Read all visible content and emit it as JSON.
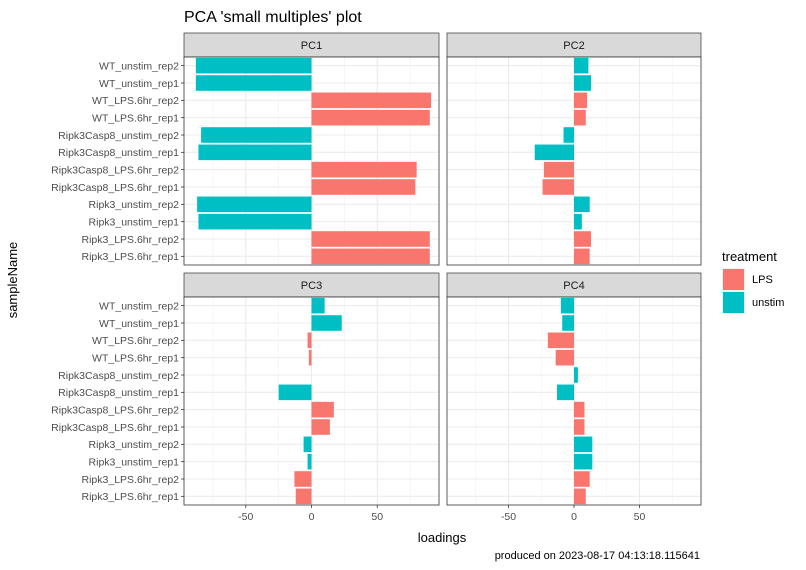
{
  "chart_data": {
    "type": "bar",
    "orientation": "horizontal",
    "facet_layout": "2x2",
    "title": "PCA 'small multiples' plot",
    "xlabel": "loadings",
    "ylabel": "sampleName",
    "caption": "produced on 2023-08-17 04:13:18.115641",
    "xlim": [
      -97,
      97
    ],
    "x_ticks": [
      -50,
      0,
      50
    ],
    "x_tick_labels": [
      "-50",
      "0",
      "50"
    ],
    "grid": true,
    "legend_position": "right",
    "legend": {
      "title": "treatment",
      "entries": [
        {
          "name": "LPS",
          "color": "#F8766D"
        },
        {
          "name": "unstim",
          "color": "#00BFC4"
        }
      ]
    },
    "categories": [
      "WT_unstim_rep2",
      "WT_unstim_rep1",
      "WT_LPS.6hr_rep2",
      "WT_LPS.6hr_rep1",
      "Ripk3Casp8_unstim_rep2",
      "Ripk3Casp8_unstim_rep1",
      "Ripk3Casp8_LPS.6hr_rep2",
      "Ripk3Casp8_LPS.6hr_rep1",
      "Ripk3_unstim_rep2",
      "Ripk3_unstim_rep1",
      "Ripk3_LPS.6hr_rep2",
      "Ripk3_LPS.6hr_rep1"
    ],
    "treatment": [
      "unstim",
      "unstim",
      "LPS",
      "LPS",
      "unstim",
      "unstim",
      "LPS",
      "LPS",
      "unstim",
      "unstim",
      "LPS",
      "LPS"
    ],
    "panels": [
      {
        "name": "PC1",
        "values": [
          -88,
          -88,
          91,
          90,
          -84,
          -86,
          80,
          79,
          -87,
          -86,
          90,
          90
        ]
      },
      {
        "name": "PC2",
        "values": [
          11,
          13,
          10,
          9,
          -8,
          -30,
          -23,
          -24,
          12,
          6,
          13,
          12
        ]
      },
      {
        "name": "PC3",
        "values": [
          10,
          23,
          -3,
          -2,
          0,
          -25,
          17,
          14,
          -6,
          -3,
          -13,
          -12
        ]
      },
      {
        "name": "PC4",
        "values": [
          -10,
          -9,
          -20,
          -14,
          3,
          -13,
          8,
          8,
          14,
          14,
          12,
          9
        ]
      }
    ]
  }
}
